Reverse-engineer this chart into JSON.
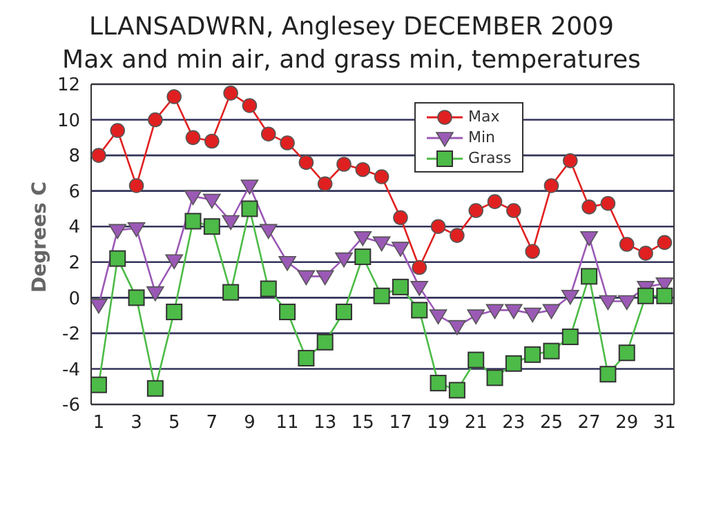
{
  "chart_data": {
    "type": "line",
    "title": "LLANSADWRN, Anglesey DECEMBER 2009",
    "subtitle": "Max and min air, and grass min, temperatures",
    "ylabel": "Degrees C",
    "x": [
      1,
      2,
      3,
      4,
      5,
      6,
      7,
      8,
      9,
      10,
      11,
      12,
      13,
      14,
      15,
      16,
      17,
      18,
      19,
      20,
      21,
      22,
      23,
      24,
      25,
      26,
      27,
      28,
      29,
      30,
      31
    ],
    "xlim": [
      0.6,
      31.5
    ],
    "xticks": [
      1,
      3,
      5,
      7,
      9,
      11,
      13,
      15,
      17,
      19,
      21,
      23,
      25,
      27,
      29,
      31
    ],
    "ylim": [
      -6,
      12
    ],
    "yticks": [
      -6,
      -4,
      -2,
      0,
      2,
      4,
      6,
      8,
      10,
      12
    ],
    "grid": "y",
    "legend": "top right",
    "series": [
      {
        "name": "Max",
        "color": "#e02020",
        "marker": "circle",
        "values": [
          8.0,
          9.4,
          6.3,
          10.0,
          11.3,
          9.0,
          8.8,
          11.5,
          10.8,
          9.2,
          8.7,
          7.6,
          6.4,
          7.5,
          7.2,
          6.8,
          4.5,
          1.7,
          4.0,
          3.5,
          4.9,
          5.4,
          4.9,
          2.6,
          6.3,
          7.7,
          5.1,
          5.3,
          3.0,
          2.5,
          3.1
        ]
      },
      {
        "name": "Min",
        "color": "#9b59b6",
        "marker": "triangle",
        "values": [
          -0.4,
          3.8,
          3.9,
          0.3,
          2.1,
          5.7,
          5.5,
          4.3,
          6.3,
          3.8,
          2.0,
          1.2,
          1.2,
          2.2,
          3.4,
          3.1,
          2.8,
          0.6,
          -1.0,
          -1.6,
          -1.0,
          -0.7,
          -0.7,
          -0.9,
          -0.7,
          0.1,
          3.4,
          -0.2,
          -0.2,
          0.6,
          0.8
        ]
      },
      {
        "name": "Grass",
        "color": "#4cbb47",
        "marker": "square",
        "values": [
          -4.9,
          2.2,
          0.0,
          -5.1,
          -0.8,
          4.3,
          4.0,
          0.3,
          5.0,
          0.5,
          -0.8,
          -3.4,
          -2.5,
          -0.8,
          2.3,
          0.1,
          0.6,
          -0.7,
          -4.8,
          -5.2,
          -3.5,
          -4.5,
          -3.7,
          -3.2,
          -3.0,
          -2.2,
          1.2,
          -4.3,
          -3.1,
          0.1,
          0.1
        ]
      }
    ]
  }
}
